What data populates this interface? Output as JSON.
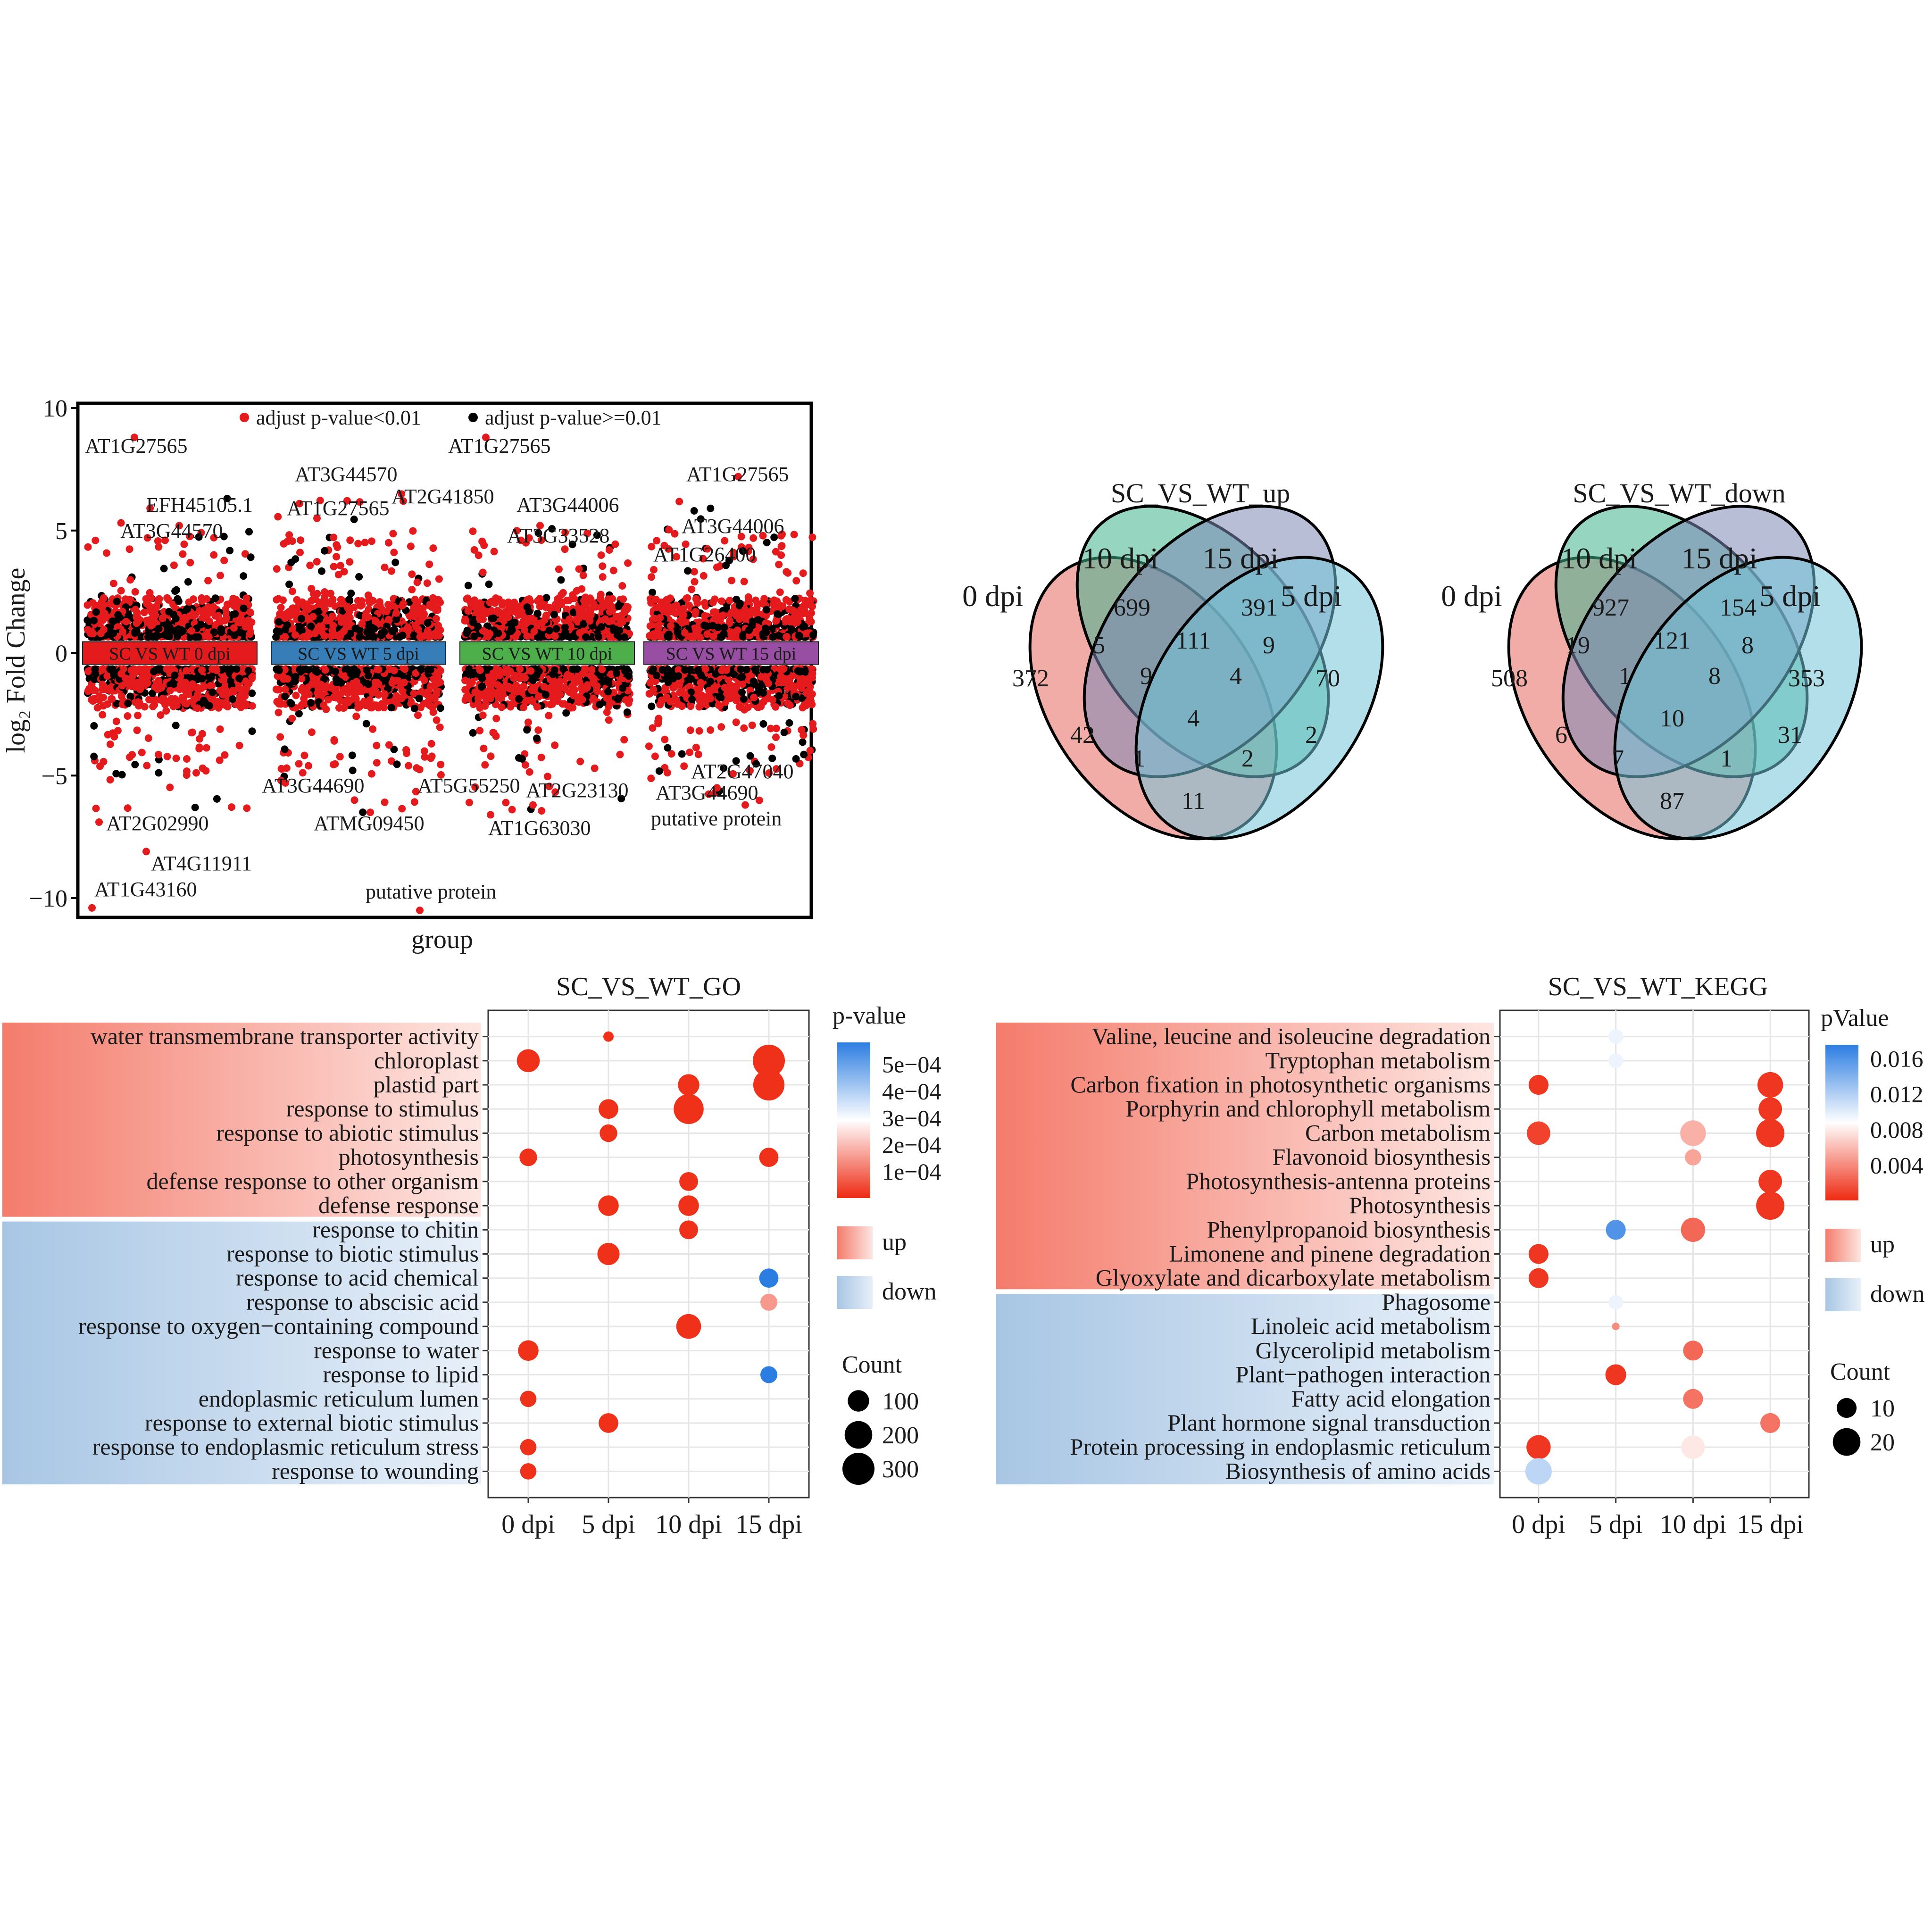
{
  "chart_data": [
    {
      "type": "scatter",
      "id": "volcano",
      "title": "",
      "xlabel": "group",
      "ylabel": "log₂ Fold Change",
      "ylim": [
        -10.5,
        10
      ],
      "yticks": [
        10,
        5,
        0,
        -5,
        -10
      ],
      "ytick_labels": [
        "10",
        "5",
        "0",
        "−5",
        "−10"
      ],
      "legend": [
        {
          "label": "adjust p-value<0.01",
          "color": "#e41a1c"
        },
        {
          "label": "adjust p-value>=0.01",
          "color": "#000000"
        }
      ],
      "groups": [
        {
          "label": "SC  VS  WT  0 dpi",
          "color": "#e41a1c"
        },
        {
          "label": "SC  VS  WT  5 dpi",
          "color": "#377eb8"
        },
        {
          "label": "SC  VS  WT  10 dpi",
          "color": "#4daf4a"
        },
        {
          "label": "SC  VS  WT  15 dpi",
          "color": "#984ea3"
        }
      ],
      "labeled_points": [
        {
          "group": 0,
          "label": "AT1G27565",
          "y": 8.8
        },
        {
          "group": 0,
          "label": "EFH45105.1",
          "y": 5.2
        },
        {
          "group": 0,
          "label": "AT3G44570",
          "y": 4.6
        },
        {
          "group": 0,
          "label": "AT2G02990",
          "y": -6.9
        },
        {
          "group": 0,
          "label": "AT4G11911",
          "y": -8.1
        },
        {
          "group": 0,
          "label": "AT1G43160",
          "y": -10.4
        },
        {
          "group": 1,
          "label": "AT3G44570",
          "y": 6.1
        },
        {
          "group": 1,
          "label": "AT1G27565",
          "y": 5.5
        },
        {
          "group": 1,
          "label": "AT2G41850",
          "y": 6.2
        },
        {
          "group": 1,
          "label": "AT3G44690",
          "y": -5.3
        },
        {
          "group": 1,
          "label": "ATMG09450",
          "y": -6.5
        },
        {
          "group": 1,
          "label": "putative protein",
          "y": -10.5
        },
        {
          "group": 2,
          "label": "AT1G27565",
          "y": 8.8
        },
        {
          "group": 2,
          "label": "AT3G44006",
          "y": 5.2
        },
        {
          "group": 2,
          "label": "AT3G33528",
          "y": 4.5
        },
        {
          "group": 2,
          "label": "AT5G55250",
          "y": -6.1
        },
        {
          "group": 2,
          "label": "AT2G23130",
          "y": -6.2
        },
        {
          "group": 2,
          "label": "AT1G63030",
          "y": -6.6
        },
        {
          "group": 3,
          "label": "AT1G27565",
          "y": 7.2
        },
        {
          "group": 3,
          "label": "AT3G44006",
          "y": 4.1
        },
        {
          "group": 3,
          "label": "AT1G26400",
          "y": 3.5
        },
        {
          "group": 3,
          "label": "AT2G47040",
          "y": -4.8
        },
        {
          "group": 3,
          "label": "AT3G44690",
          "y": -5.5
        },
        {
          "group": 3,
          "label": "putative protein",
          "y": -6.2
        }
      ]
    },
    {
      "type": "venn",
      "id": "venn_up",
      "title": "SC_VS_WT_up",
      "sets": [
        {
          "name": "0 dpi",
          "color": "#e8685e"
        },
        {
          "name": "10 dpi",
          "color": "#3fb58e"
        },
        {
          "name": "15 dpi",
          "color": "#7b89b4"
        },
        {
          "name": "5 dpi",
          "color": "#74c5d8"
        }
      ],
      "regions": {
        "0": "372",
        "10": "699",
        "15": "391",
        "5": "70",
        "0&10": "5",
        "10&15": "111",
        "15&5": "9",
        "0&10&15": "9",
        "10&15&5": "4",
        "0&10&15&5": "4",
        "0&15": "42",
        "10&5": "2",
        "0&15&5": "1",
        "0&10&5": "2",
        "0&5": "11"
      }
    },
    {
      "type": "venn",
      "id": "venn_down",
      "title": "SC_VS_WT_down",
      "sets": [
        {
          "name": "0 dpi",
          "color": "#e8685e"
        },
        {
          "name": "10 dpi",
          "color": "#3fb58e"
        },
        {
          "name": "15 dpi",
          "color": "#7b89b4"
        },
        {
          "name": "5 dpi",
          "color": "#74c5d8"
        }
      ],
      "regions": {
        "0": "508",
        "10": "927",
        "15": "154",
        "5": "353",
        "0&10": "19",
        "10&15": "121",
        "15&5": "8",
        "0&10&15": "1",
        "10&15&5": "8",
        "0&10&15&5": "10",
        "0&15": "6",
        "10&5": "31",
        "0&15&5": "7",
        "0&10&5": "1",
        "0&5": "87"
      }
    },
    {
      "type": "dot",
      "id": "go",
      "title": "SC_VS_WT_GO",
      "x": [
        "0 dpi",
        "5 dpi",
        "10 dpi",
        "15 dpi"
      ],
      "y_up": [
        "water transmembrane transporter activity",
        "chloroplast",
        "plastid part",
        "response to stimulus",
        "response to abiotic stimulus",
        "photosynthesis",
        "defense response to other organism",
        "defense response"
      ],
      "y_down": [
        "response to chitin",
        "response to biotic stimulus",
        "response to acid chemical",
        "response to abscisic acid",
        "response to oxygen−containing compound",
        "response to water",
        "response to lipid",
        "endoplasmic reticulum lumen",
        "response to external biotic stimulus",
        "response to endoplasmic reticulum stress",
        "response to wounding"
      ],
      "points": [
        {
          "term": 0,
          "x": 1,
          "count": 30,
          "p": 1e-05
        },
        {
          "term": 1,
          "x": 0,
          "count": 120,
          "p": 1e-05
        },
        {
          "term": 1,
          "x": 3,
          "count": 300,
          "p": 1e-05
        },
        {
          "term": 2,
          "x": 2,
          "count": 100,
          "p": 1e-05
        },
        {
          "term": 2,
          "x": 3,
          "count": 280,
          "p": 1e-05
        },
        {
          "term": 3,
          "x": 1,
          "count": 80,
          "p": 1e-05
        },
        {
          "term": 3,
          "x": 2,
          "count": 250,
          "p": 1e-05
        },
        {
          "term": 4,
          "x": 1,
          "count": 60,
          "p": 1e-05
        },
        {
          "term": 5,
          "x": 0,
          "count": 60,
          "p": 1e-05
        },
        {
          "term": 5,
          "x": 3,
          "count": 75,
          "p": 1e-05
        },
        {
          "term": 6,
          "x": 2,
          "count": 70,
          "p": 1e-05
        },
        {
          "term": 7,
          "x": 1,
          "count": 90,
          "p": 1e-05
        },
        {
          "term": 7,
          "x": 2,
          "count": 90,
          "p": 1e-05
        },
        {
          "term": 8,
          "x": 2,
          "count": 70,
          "p": 1e-05
        },
        {
          "term": 9,
          "x": 1,
          "count": 110,
          "p": 1e-05
        },
        {
          "term": 10,
          "x": 3,
          "count": 75,
          "p": 0.00058
        },
        {
          "term": 11,
          "x": 3,
          "count": 55,
          "p": 0.00015
        },
        {
          "term": 12,
          "x": 2,
          "count": 150,
          "p": 1e-05
        },
        {
          "term": 13,
          "x": 0,
          "count": 90,
          "p": 1e-05
        },
        {
          "term": 14,
          "x": 3,
          "count": 55,
          "p": 0.00058
        },
        {
          "term": 15,
          "x": 0,
          "count": 50,
          "p": 1e-05
        },
        {
          "term": 16,
          "x": 1,
          "count": 80,
          "p": 1e-05
        },
        {
          "term": 17,
          "x": 0,
          "count": 50,
          "p": 1e-05
        },
        {
          "term": 18,
          "x": 0,
          "count": 50,
          "p": 1e-05
        }
      ],
      "legend": {
        "color_title": "p-value",
        "color_ticks": [
          "5e−04",
          "4e−04",
          "3e−04",
          "2e−04",
          "1e−04"
        ],
        "color_tick_values": [
          0.0005,
          0.0004,
          0.0003,
          0.0002,
          0.0001
        ],
        "color_range": [
          0,
          0.00058
        ],
        "up_label": "up",
        "down_label": "down",
        "size_title": "Count",
        "size_entries": [
          100,
          200,
          300
        ],
        "size_labels": [
          "100",
          "200",
          "300"
        ],
        "size_range": [
          30,
          300
        ]
      }
    },
    {
      "type": "dot",
      "id": "kegg",
      "title": "SC_VS_WT_KEGG",
      "x": [
        "0 dpi",
        "5 dpi",
        "10 dpi",
        "15 dpi"
      ],
      "y_up": [
        "Valine, leucine and isoleucine degradation",
        "Tryptophan metabolism",
        "Carbon fixation in photosynthetic organisms",
        "Porphyrin and chlorophyll metabolism",
        "Carbon metabolism",
        "Flavonoid biosynthesis",
        "Photosynthesis-antenna proteins",
        "Photosynthesis",
        "Phenylpropanoid biosynthesis",
        "Limonene and pinene degradation",
        "Glyoxylate and dicarboxylate metabolism"
      ],
      "y_down": [
        "Phagosome",
        "Linoleic acid metabolism",
        "Glycerolipid metabolism",
        "Plant−pathogen interaction",
        "Fatty acid elongation",
        "Plant hormone signal transduction",
        "Protein processing in endoplasmic reticulum",
        "Biosynthesis of amino acids"
      ],
      "points": [
        {
          "term": 0,
          "x": 1,
          "count": 6,
          "p": 0.0095
        },
        {
          "term": 1,
          "x": 1,
          "count": 6,
          "p": 0.0095
        },
        {
          "term": 2,
          "x": 0,
          "count": 10,
          "p": 0.0005
        },
        {
          "term": 2,
          "x": 3,
          "count": 17,
          "p": 0.0005
        },
        {
          "term": 3,
          "x": 3,
          "count": 14,
          "p": 0.0005
        },
        {
          "term": 4,
          "x": 0,
          "count": 14,
          "p": 0.001
        },
        {
          "term": 4,
          "x": 2,
          "count": 17,
          "p": 0.0055
        },
        {
          "term": 4,
          "x": 3,
          "count": 21,
          "p": 0.0005
        },
        {
          "term": 5,
          "x": 2,
          "count": 7,
          "p": 0.005
        },
        {
          "term": 6,
          "x": 3,
          "count": 14,
          "p": 0.0005
        },
        {
          "term": 7,
          "x": 3,
          "count": 21,
          "p": 0.0005
        },
        {
          "term": 8,
          "x": 1,
          "count": 10,
          "p": 0.016
        },
        {
          "term": 8,
          "x": 2,
          "count": 15,
          "p": 0.0025
        },
        {
          "term": 9,
          "x": 0,
          "count": 10,
          "p": 0.0005
        },
        {
          "term": 10,
          "x": 0,
          "count": 10,
          "p": 0.0005
        },
        {
          "term": 11,
          "x": 1,
          "count": 6,
          "p": 0.0095
        },
        {
          "term": 12,
          "x": 1,
          "count": 4,
          "p": 0.004
        },
        {
          "term": 13,
          "x": 2,
          "count": 10,
          "p": 0.0025
        },
        {
          "term": 14,
          "x": 1,
          "count": 11,
          "p": 0.0005
        },
        {
          "term": 15,
          "x": 2,
          "count": 10,
          "p": 0.003
        },
        {
          "term": 16,
          "x": 3,
          "count": 10,
          "p": 0.003
        },
        {
          "term": 17,
          "x": 0,
          "count": 15,
          "p": 0.0005
        },
        {
          "term": 17,
          "x": 2,
          "count": 14,
          "p": 0.0078
        },
        {
          "term": 18,
          "x": 0,
          "count": 18,
          "p": 0.0115
        }
      ],
      "legend": {
        "color_title": "pValue",
        "color_ticks": [
          "0.016",
          "0.012",
          "0.008",
          "0.004"
        ],
        "color_tick_values": [
          0.016,
          0.012,
          0.008,
          0.004
        ],
        "color_range": [
          0,
          0.0175
        ],
        "up_label": "up",
        "down_label": "down",
        "size_title": "Count",
        "size_entries": [
          10,
          20
        ],
        "size_labels": [
          "10",
          "20"
        ],
        "size_range": [
          4,
          21
        ]
      }
    }
  ]
}
